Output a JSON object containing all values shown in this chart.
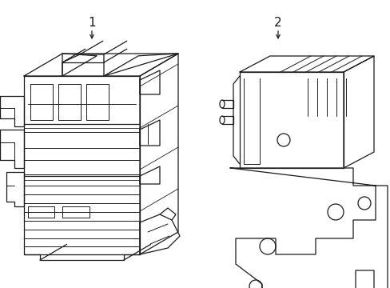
{
  "bg_color": "#ffffff",
  "line_color": "#1a1a1a",
  "line_width": 0.9,
  "figsize": [
    4.89,
    3.6
  ],
  "dpi": 100,
  "label1": "1",
  "label2": "2"
}
